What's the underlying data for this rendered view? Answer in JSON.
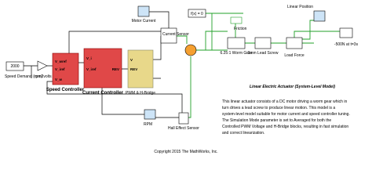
{
  "constant": {
    "value": "2000",
    "label": "Speed Demand (rpm)"
  },
  "gain": {
    "label": "rpm2volts"
  },
  "speed_controller": {
    "ports": [
      "V_wref",
      "V_iref",
      "V_w"
    ],
    "label": "Speed Controller"
  },
  "current_controller": {
    "ports": [
      "V_i",
      "V_iref",
      "REV"
    ],
    "label": "Current Controller"
  },
  "pwm": {
    "ports": [
      "V",
      "REV"
    ],
    "label": "PWM & H-Bridge"
  },
  "motor_current": {
    "label": "Motor Current"
  },
  "current_sensor": {
    "label": "Current Sensor"
  },
  "rpm": {
    "label": "RPM"
  },
  "hall_sensor": {
    "label": "Hall Effect Sensor"
  },
  "solver": {
    "label": "f(x) = 0"
  },
  "friction": {
    "label": "Friction"
  },
  "worm_gear": {
    "label": "6.25:1 Worm Gear"
  },
  "lead_screw": {
    "label": "3mm Lead Screw"
  },
  "load_force": {
    "label": "Load Force"
  },
  "linear_position": {
    "label": "Linear Position"
  },
  "step": {
    "label": "-500N at t=3s"
  },
  "title": "Linear Electric Actuator (System-Level Model)",
  "description": [
    "This linear actuator consists of a DC motor driving a worm gear which in",
    "turn drives a lead screw to produce linear motion. This model is a",
    "system-level model suitable for motor current and speed controller tuning.",
    "The Simulation Mode parameter is set to Averaged for both the",
    "Controlled PWM Voltage and H-Bridge blocks, resulting in fast simulation",
    "and correct linearization."
  ],
  "copyright": "Copyright 2015 The MathWorks, Inc."
}
